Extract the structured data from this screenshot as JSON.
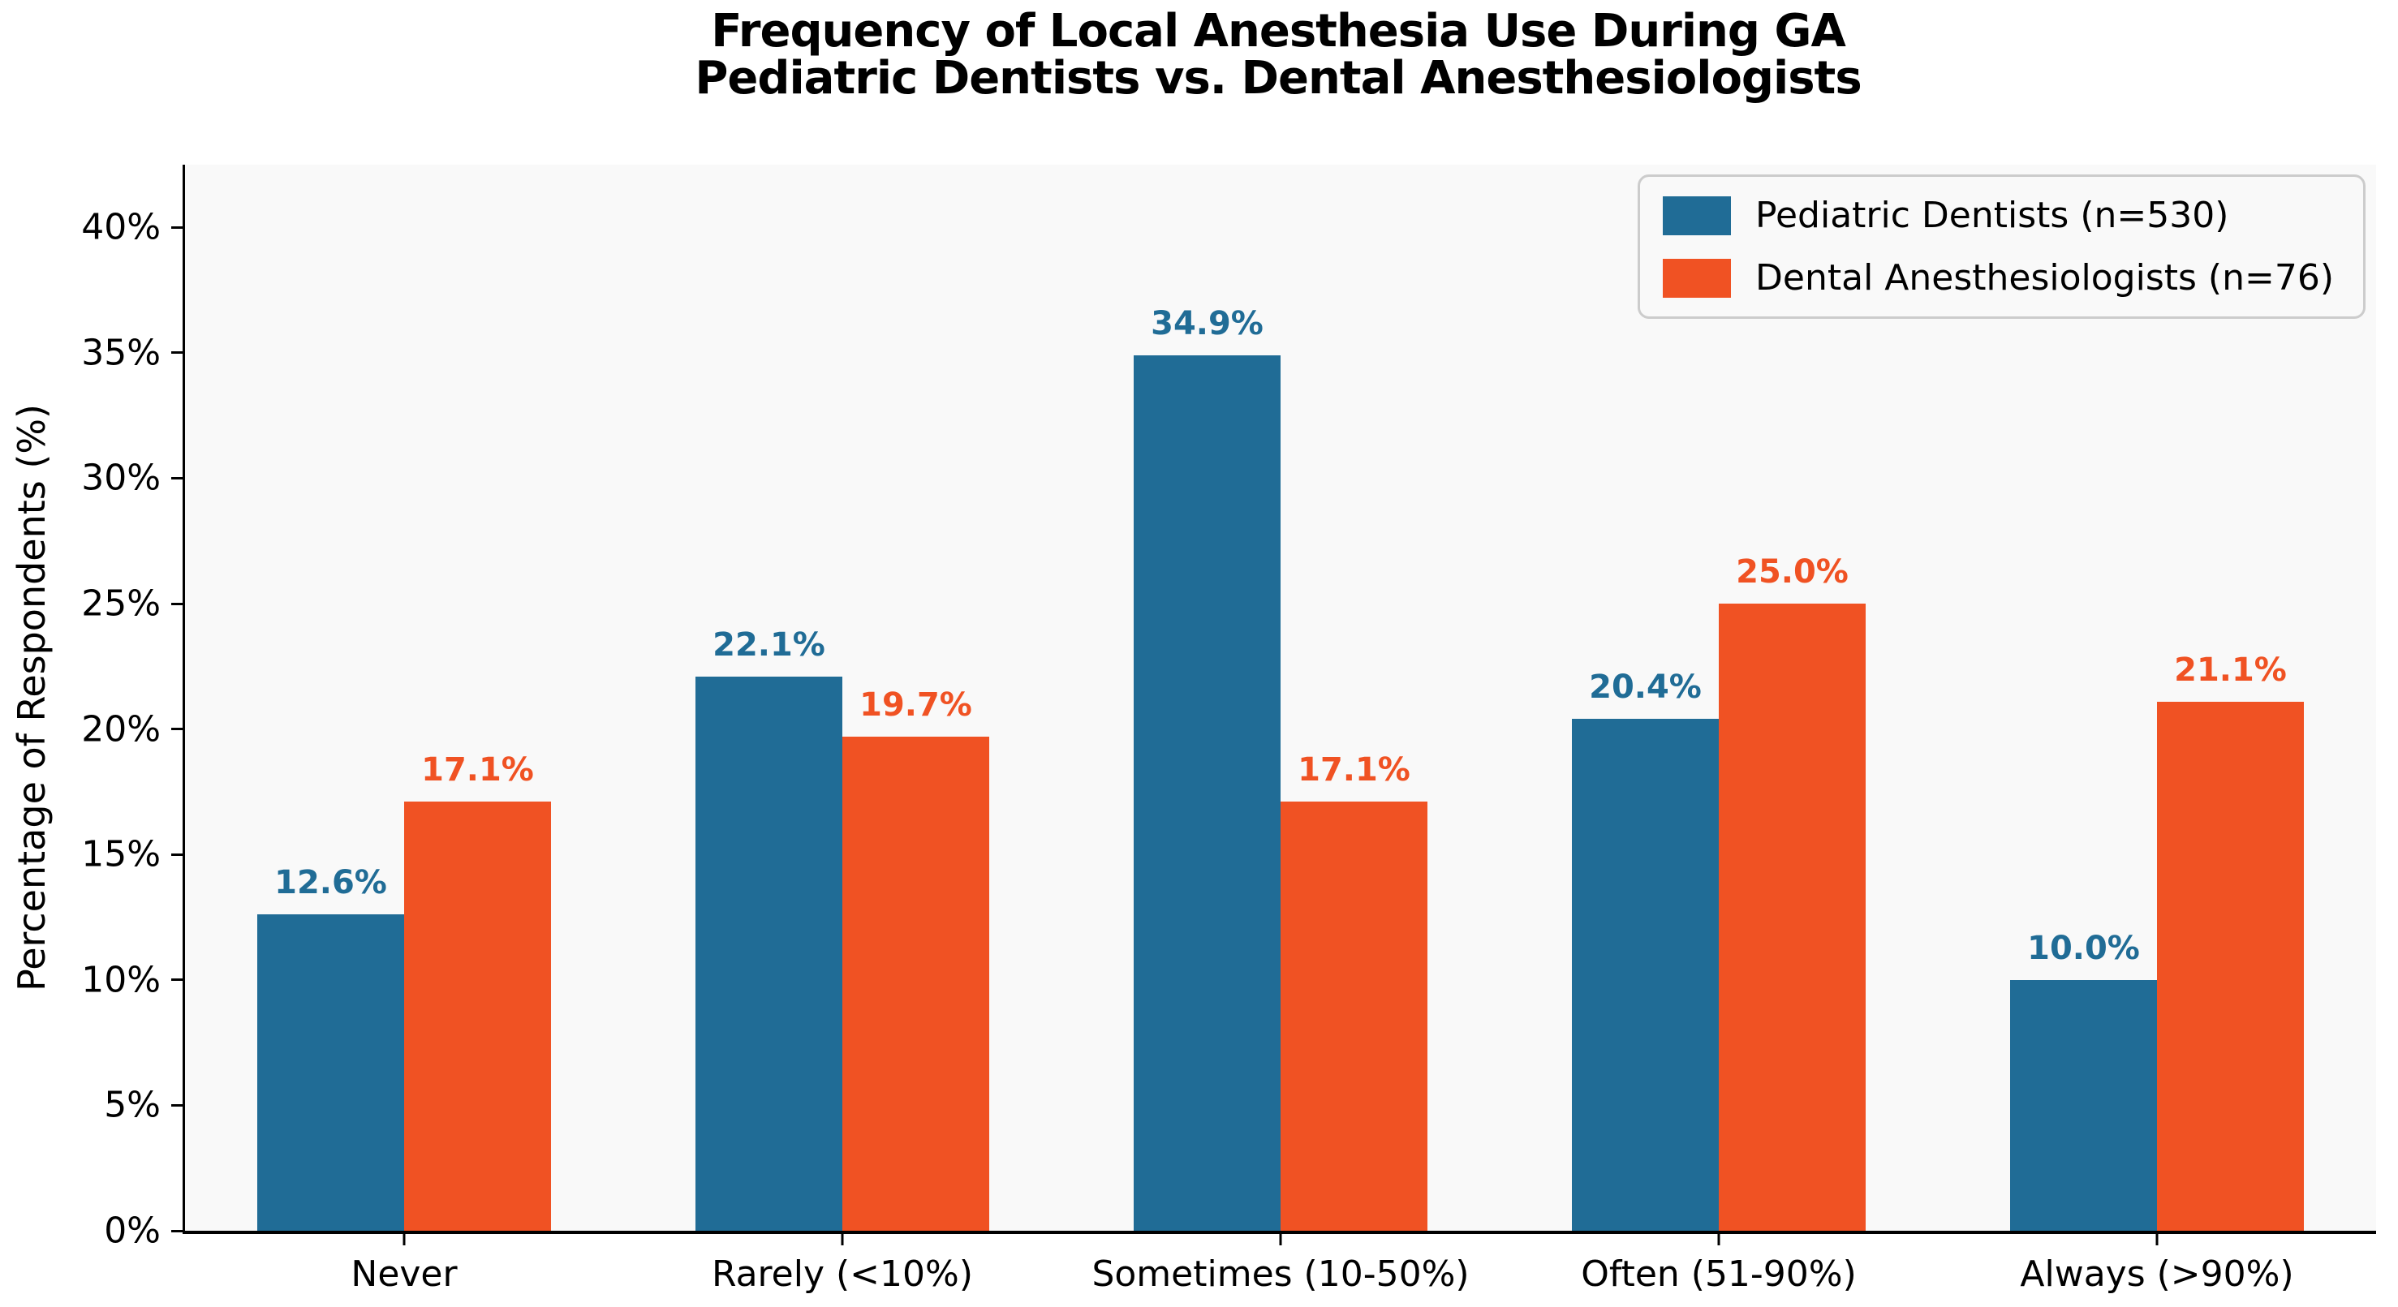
{
  "title": {
    "line1": "Frequency of Local Anesthesia Use During GA",
    "line2": "Pediatric Dentists vs. Dental Anesthesiologists"
  },
  "colors": {
    "pediatric_blue": "#206c96",
    "anesthesiologist_orange": "#f05223",
    "plot_background": "#f9f9f9",
    "figure_background": "#ffffff",
    "axis": "#000000",
    "legend_border": "#cccccc"
  },
  "chart_data": {
    "type": "bar",
    "title": "Frequency of Local Anesthesia Use During GA\nPediatric Dentists vs. Dental Anesthesiologists",
    "xlabel": "",
    "ylabel": "Percentage of Respondents (%)",
    "categories": [
      "Never",
      "Rarely (<10%)",
      "Sometimes (10-50%)",
      "Often (51-90%)",
      "Always (>90%)"
    ],
    "series": [
      {
        "name": "Pediatric Dentists (n=530)",
        "color": "#206c96",
        "values": [
          12.6,
          22.1,
          34.9,
          20.4,
          10.0
        ],
        "labels": [
          "12.6%",
          "22.1%",
          "34.9%",
          "20.4%",
          "10.0%"
        ]
      },
      {
        "name": "Dental Anesthesiologists (n=76)",
        "color": "#f05223",
        "values": [
          17.1,
          19.7,
          17.1,
          25.0,
          21.1
        ],
        "labels": [
          "17.1%",
          "19.7%",
          "17.1%",
          "25.0%",
          "21.1%"
        ]
      }
    ],
    "ylim": [
      0,
      42.5
    ],
    "yticks": [
      0,
      5,
      10,
      15,
      20,
      25,
      30,
      35,
      40
    ],
    "ytick_labels": [
      "0%",
      "5%",
      "10%",
      "15%",
      "20%",
      "25%",
      "30%",
      "35%",
      "40%"
    ],
    "grid": false,
    "legend_position": "upper right",
    "value_labels_shown": true
  }
}
